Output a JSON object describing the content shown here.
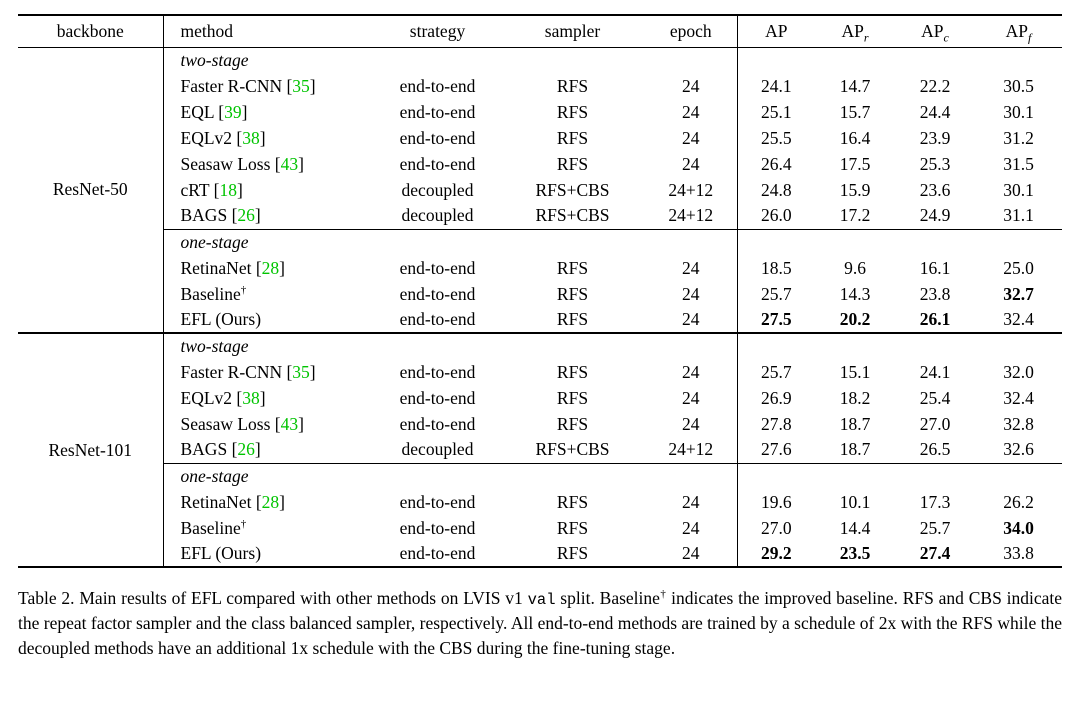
{
  "colors": {
    "citation_green": "#00c400",
    "text": "#000000"
  },
  "table": {
    "columns": [
      {
        "key": "backbone",
        "label": "backbone"
      },
      {
        "key": "method",
        "label": "method"
      },
      {
        "key": "strategy",
        "label": "strategy"
      },
      {
        "key": "sampler",
        "label": "sampler"
      },
      {
        "key": "epoch",
        "label": "epoch"
      },
      {
        "key": "ap",
        "label": "AP"
      },
      {
        "key": "ap_r",
        "label": "AP",
        "sub": "r"
      },
      {
        "key": "ap_c",
        "label": "AP",
        "sub": "c"
      },
      {
        "key": "ap_f",
        "label": "AP",
        "sub": "f"
      }
    ],
    "groups": [
      {
        "backbone": "ResNet-50",
        "sections": [
          {
            "label": "two-stage",
            "rows": [
              {
                "method": "Faster R-CNN",
                "cite": "35",
                "strategy": "end-to-end",
                "sampler": "RFS",
                "epoch": "24",
                "values": [
                  "24.1",
                  "14.7",
                  "22.2",
                  "30.5"
                ]
              },
              {
                "method": "EQL",
                "cite": "39",
                "strategy": "end-to-end",
                "sampler": "RFS",
                "epoch": "24",
                "values": [
                  "25.1",
                  "15.7",
                  "24.4",
                  "30.1"
                ]
              },
              {
                "method": "EQLv2",
                "cite": "38",
                "strategy": "end-to-end",
                "sampler": "RFS",
                "epoch": "24",
                "values": [
                  "25.5",
                  "16.4",
                  "23.9",
                  "31.2"
                ]
              },
              {
                "method": "Seasaw Loss",
                "cite": "43",
                "strategy": "end-to-end",
                "sampler": "RFS",
                "epoch": "24",
                "values": [
                  "26.4",
                  "17.5",
                  "25.3",
                  "31.5"
                ]
              },
              {
                "method": "cRT",
                "cite": "18",
                "strategy": "decoupled",
                "sampler": "RFS+CBS",
                "epoch": "24+12",
                "values": [
                  "24.8",
                  "15.9",
                  "23.6",
                  "30.1"
                ]
              },
              {
                "method": "BAGS",
                "cite": "26",
                "strategy": "decoupled",
                "sampler": "RFS+CBS",
                "epoch": "24+12",
                "values": [
                  "26.0",
                  "17.2",
                  "24.9",
                  "31.1"
                ]
              }
            ]
          },
          {
            "label": "one-stage",
            "rows": [
              {
                "method": "RetinaNet",
                "cite": "28",
                "strategy": "end-to-end",
                "sampler": "RFS",
                "epoch": "24",
                "values": [
                  "18.5",
                  "9.6",
                  "16.1",
                  "25.0"
                ]
              },
              {
                "method": "Baseline",
                "dagger": true,
                "strategy": "end-to-end",
                "sampler": "RFS",
                "epoch": "24",
                "values": [
                  "25.7",
                  "14.3",
                  "23.8",
                  "32.7"
                ],
                "bold": [
                  false,
                  false,
                  false,
                  true
                ]
              },
              {
                "method": "EFL (Ours)",
                "strategy": "end-to-end",
                "sampler": "RFS",
                "epoch": "24",
                "values": [
                  "27.5",
                  "20.2",
                  "26.1",
                  "32.4"
                ],
                "bold": [
                  true,
                  true,
                  true,
                  false
                ]
              }
            ]
          }
        ]
      },
      {
        "backbone": "ResNet-101",
        "sections": [
          {
            "label": "two-stage",
            "rows": [
              {
                "method": "Faster R-CNN",
                "cite": "35",
                "strategy": "end-to-end",
                "sampler": "RFS",
                "epoch": "24",
                "values": [
                  "25.7",
                  "15.1",
                  "24.1",
                  "32.0"
                ]
              },
              {
                "method": "EQLv2",
                "cite": "38",
                "strategy": "end-to-end",
                "sampler": "RFS",
                "epoch": "24",
                "values": [
                  "26.9",
                  "18.2",
                  "25.4",
                  "32.4"
                ]
              },
              {
                "method": "Seasaw Loss",
                "cite": "43",
                "strategy": "end-to-end",
                "sampler": "RFS",
                "epoch": "24",
                "values": [
                  "27.8",
                  "18.7",
                  "27.0",
                  "32.8"
                ]
              },
              {
                "method": "BAGS",
                "cite": "26",
                "strategy": "decoupled",
                "sampler": "RFS+CBS",
                "epoch": "24+12",
                "values": [
                  "27.6",
                  "18.7",
                  "26.5",
                  "32.6"
                ]
              }
            ]
          },
          {
            "label": "one-stage",
            "rows": [
              {
                "method": "RetinaNet",
                "cite": "28",
                "strategy": "end-to-end",
                "sampler": "RFS",
                "epoch": "24",
                "values": [
                  "19.6",
                  "10.1",
                  "17.3",
                  "26.2"
                ]
              },
              {
                "method": "Baseline",
                "dagger": true,
                "strategy": "end-to-end",
                "sampler": "RFS",
                "epoch": "24",
                "values": [
                  "27.0",
                  "14.4",
                  "25.7",
                  "34.0"
                ],
                "bold": [
                  false,
                  false,
                  false,
                  true
                ]
              },
              {
                "method": "EFL (Ours)",
                "strategy": "end-to-end",
                "sampler": "RFS",
                "epoch": "24",
                "values": [
                  "29.2",
                  "23.5",
                  "27.4",
                  "33.8"
                ],
                "bold": [
                  true,
                  true,
                  true,
                  false
                ]
              }
            ]
          }
        ]
      }
    ]
  },
  "caption": {
    "parts": [
      {
        "text": "Table 2. Main results of EFL compared with other methods on LVIS v1 ",
        "style": "normal"
      },
      {
        "text": "val",
        "style": "mono"
      },
      {
        "text": " split. Baseline",
        "style": "normal"
      },
      {
        "text": "†",
        "style": "sup"
      },
      {
        "text": " indicates the improved baseline. RFS and CBS indicate the repeat factor sampler and the class balanced sampler, respectively. All end-to-end methods are trained by a schedule of 2x with the RFS while the decoupled methods have an additional 1x schedule with the CBS during the fine-tuning stage.",
        "style": "normal"
      }
    ]
  }
}
